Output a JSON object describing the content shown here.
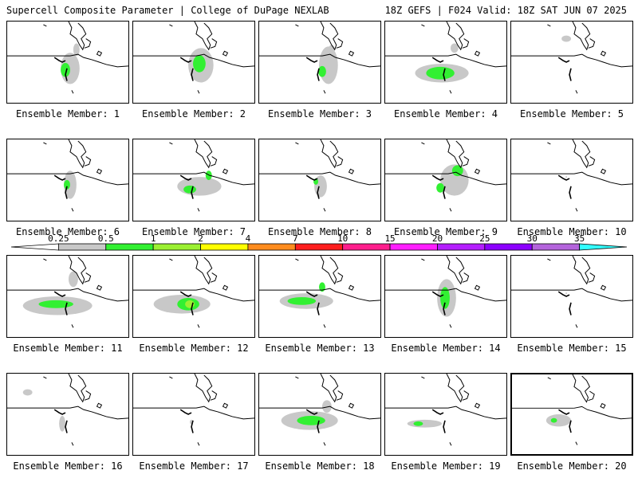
{
  "header": {
    "left_title": "Supercell Composite Parameter | College of DuPage NEXLAB",
    "right_title": "18Z GEFS | F024 Valid: 18Z SAT JUN 07 2025"
  },
  "members": [
    {
      "label": "Ensemble Member: 1"
    },
    {
      "label": "Ensemble Member: 2"
    },
    {
      "label": "Ensemble Member: 3"
    },
    {
      "label": "Ensemble Member: 4"
    },
    {
      "label": "Ensemble Member: 5"
    },
    {
      "label": "Ensemble Member: 6"
    },
    {
      "label": "Ensemble Member: 7"
    },
    {
      "label": "Ensemble Member: 8"
    },
    {
      "label": "Ensemble Member: 9"
    },
    {
      "label": "Ensemble Member: 10"
    },
    {
      "label": "Ensemble Member: 11"
    },
    {
      "label": "Ensemble Member: 12"
    },
    {
      "label": "Ensemble Member: 13"
    },
    {
      "label": "Ensemble Member: 14"
    },
    {
      "label": "Ensemble Member: 15"
    },
    {
      "label": "Ensemble Member: 16"
    },
    {
      "label": "Ensemble Member: 17"
    },
    {
      "label": "Ensemble Member: 18"
    },
    {
      "label": "Ensemble Member: 19"
    },
    {
      "label": "Ensemble Member: 20"
    }
  ],
  "colorbar": {
    "levels": [
      "0.25",
      "0.5",
      "1",
      "2",
      "4",
      "7",
      "10",
      "15",
      "20",
      "25",
      "30",
      "35"
    ],
    "colors": [
      "#ffffff",
      "#c8c8c8",
      "#32f032",
      "#9bf032",
      "#ffff00",
      "#ff8c1e",
      "#ff1e1e",
      "#ff1e8c",
      "#ff1eff",
      "#b41eff",
      "#8c00ff",
      "#b464dc",
      "#32ffff"
    ]
  }
}
